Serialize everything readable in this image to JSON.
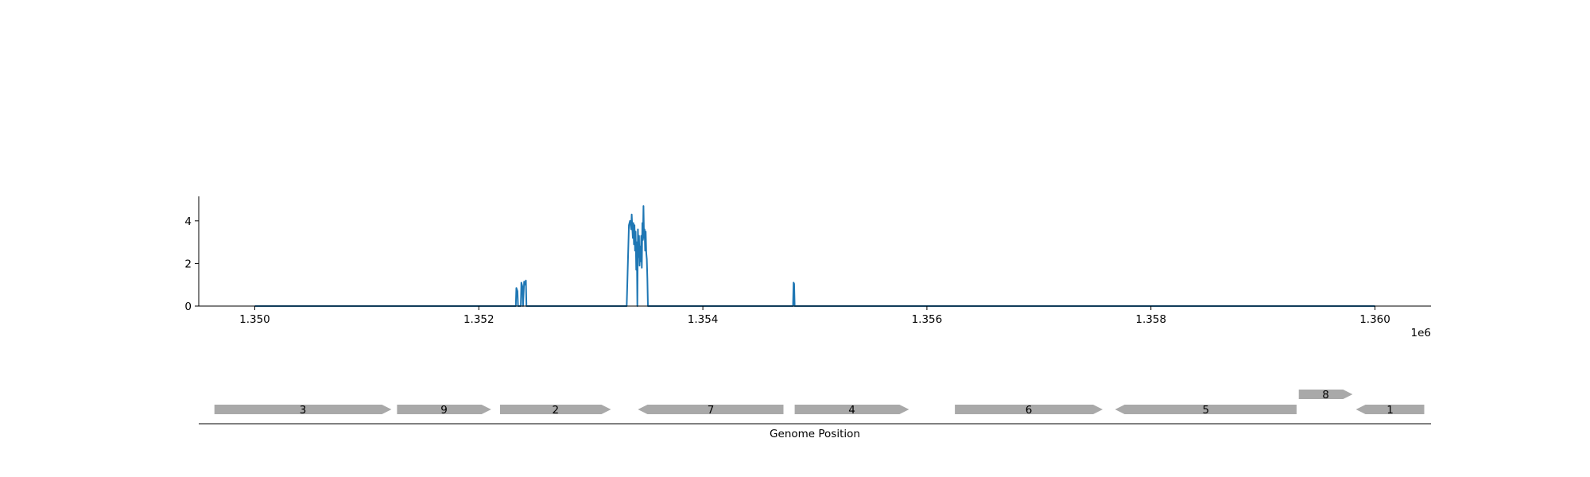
{
  "chart_data": [
    {
      "type": "line",
      "x_tick_labels": [
        "1.350",
        "1.352",
        "1.354",
        "1.356",
        "1.358",
        "1.360"
      ],
      "x_ticks": [
        1350000,
        1352000,
        1354000,
        1356000,
        1358000,
        1360000
      ],
      "x_offset_label": "1e6",
      "y_tick_labels": [
        "0",
        "2",
        "4"
      ],
      "y_ticks": [
        0,
        2,
        4
      ],
      "xlim": [
        1349500,
        1360500
      ],
      "ylim": [
        0,
        5.15
      ],
      "grid": false,
      "color": "#1f77b4",
      "series": [
        {
          "x": [
            1350000,
            1352330,
            1352335,
            1352345,
            1352350,
            1352360,
            1352365,
            1352375,
            1352380,
            1352390,
            1352395,
            1352405,
            1352410,
            1352420,
            1352425,
            1352430,
            1352435,
            1352440,
            1353320,
            1353340,
            1353350,
            1353360,
            1353365,
            1353370,
            1353375,
            1353380,
            1353385,
            1353390,
            1353395,
            1353400,
            1353405,
            1353410,
            1353415,
            1353420,
            1353425,
            1353430,
            1353435,
            1353440,
            1353445,
            1353450,
            1353455,
            1353460,
            1353465,
            1353470,
            1353475,
            1353480,
            1353485,
            1353490,
            1353495,
            1353500,
            1353505,
            1353510,
            1353515,
            1353520,
            1354805,
            1354810,
            1354815,
            1354820,
            1360000
          ],
          "y": [
            0,
            0,
            0.85,
            0.7,
            0,
            0,
            0,
            0,
            1.1,
            0.9,
            0,
            1.15,
            1.0,
            1.2,
            0,
            0,
            0,
            0,
            0,
            3.8,
            4.0,
            3.6,
            4.3,
            3.7,
            3.2,
            3.9,
            2.9,
            3.8,
            2.6,
            3.5,
            1.7,
            3.0,
            0,
            3.6,
            2.3,
            3.3,
            1.9,
            2.8,
            2.1,
            3.3,
            1.8,
            3.9,
            3.1,
            4.7,
            3.2,
            3.6,
            2.6,
            3.5,
            2.5,
            2.2,
            1.3,
            0,
            0,
            0,
            0,
            1.1,
            1.05,
            0,
            0
          ]
        }
      ]
    },
    {
      "type": "gene-track",
      "xlabel": "Genome Position",
      "color": "#a9a9a9",
      "genes": [
        {
          "label": "3",
          "start": 1349640,
          "end": 1351220,
          "strand": "+",
          "row": 0
        },
        {
          "label": "9",
          "start": 1351270,
          "end": 1352110,
          "strand": "+",
          "row": 0
        },
        {
          "label": "2",
          "start": 1352190,
          "end": 1353180,
          "strand": "+",
          "row": 0
        },
        {
          "label": "7",
          "start": 1353420,
          "end": 1354720,
          "strand": "-",
          "row": 0
        },
        {
          "label": "4",
          "start": 1354820,
          "end": 1355840,
          "strand": "+",
          "row": 0
        },
        {
          "label": "6",
          "start": 1356250,
          "end": 1357570,
          "strand": "+",
          "row": 0
        },
        {
          "label": "5",
          "start": 1357680,
          "end": 1359300,
          "strand": "-",
          "row": 0
        },
        {
          "label": "8",
          "start": 1359320,
          "end": 1359800,
          "strand": "+",
          "row": 1
        },
        {
          "label": "1",
          "start": 1359830,
          "end": 1360440,
          "strand": "-",
          "row": 0
        }
      ]
    }
  ]
}
